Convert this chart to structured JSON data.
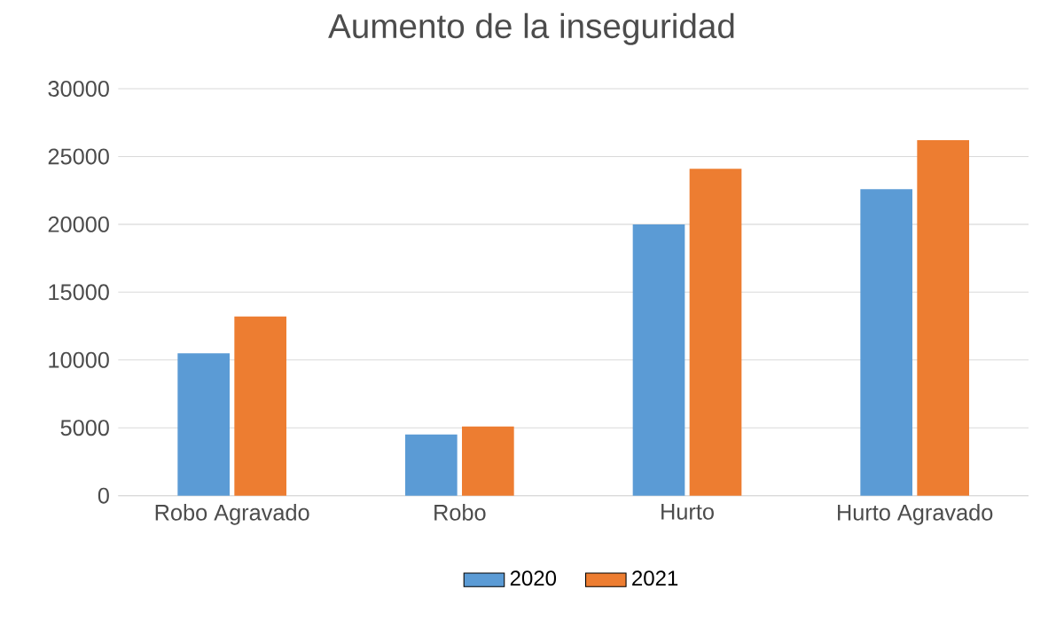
{
  "chart_data": {
    "type": "bar",
    "title": "Aumento de la inseguridad",
    "categories": [
      "Robo Agravado",
      "Robo",
      "Hurto",
      "Hurto Agravado"
    ],
    "series": [
      {
        "name": "2020",
        "color": "#5b9bd5",
        "values": [
          10500,
          4500,
          20000,
          22600
        ]
      },
      {
        "name": "2021",
        "color": "#ed7d31",
        "values": [
          13200,
          5100,
          24100,
          26200
        ]
      }
    ],
    "ylim": [
      0,
      30000
    ],
    "yticks": [
      0,
      5000,
      10000,
      15000,
      20000,
      25000,
      30000
    ],
    "grid": "y",
    "legend": "bottom"
  }
}
